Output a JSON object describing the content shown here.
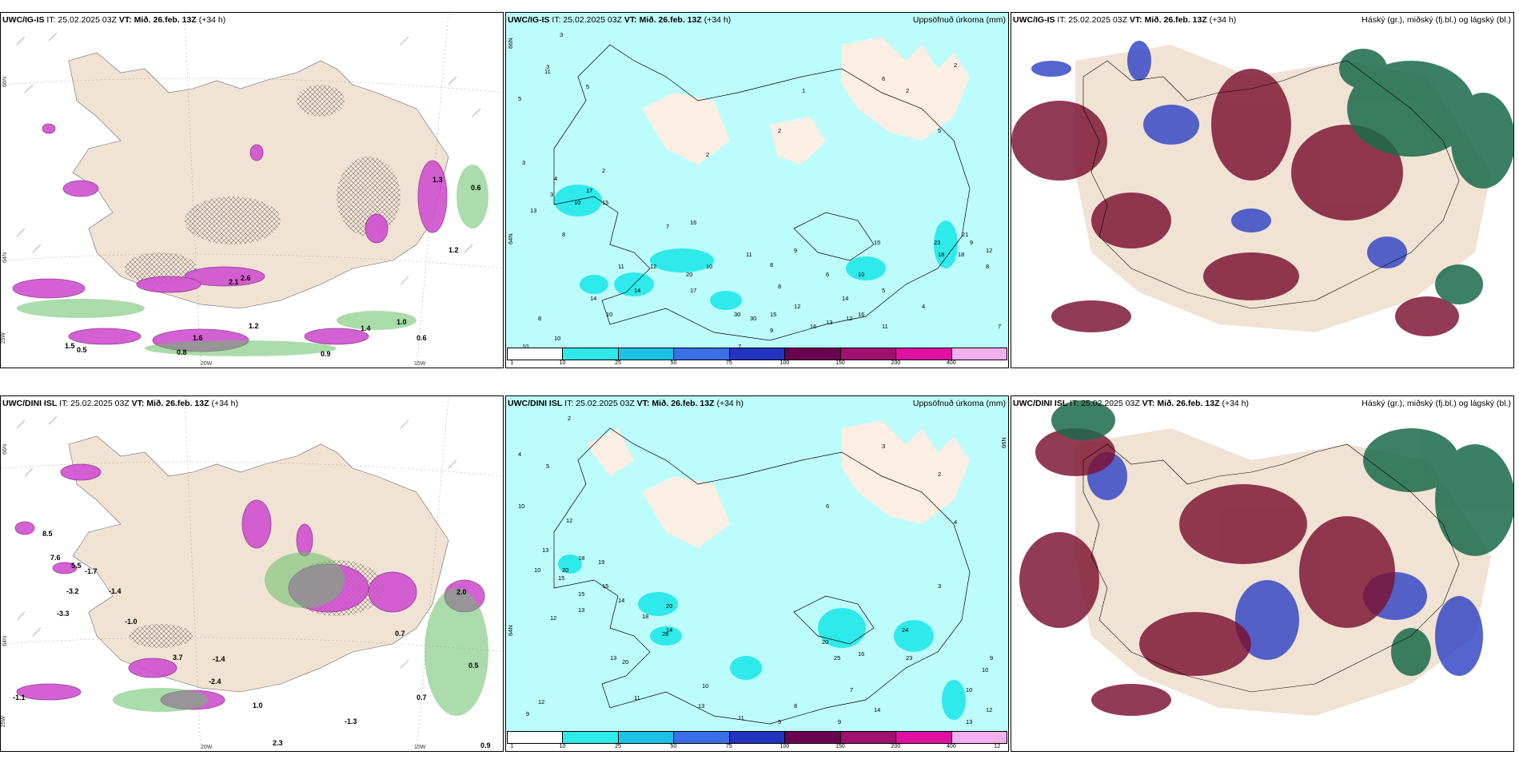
{
  "panels": [
    {
      "model": "UWC/IG-IS",
      "it": "IT: 25.02.2025 03Z",
      "vt": "VT: Mið. 26.feb. 13Z",
      "lead": "(+34 h)",
      "right": ""
    },
    {
      "model": "UWC/IG-IS",
      "it": "IT: 25.02.2025 03Z",
      "vt": "VT: Mið. 26.feb. 13Z",
      "lead": "(+34 h)",
      "right": "Uppsöfnuð úrkoma (mm)"
    },
    {
      "model": "UWC/IG-IS",
      "it": "IT: 25.02.2025 03Z",
      "vt": "VT: Mið. 26.feb. 13Z",
      "lead": "(+34 h)",
      "right": "Háský (gr.), miðský (fj.bl.) og lágský (bl.)"
    },
    {
      "model": "UWC/DINI ISL",
      "it": "IT: 25.02.2025 03Z",
      "vt": "VT: Mið. 26.feb. 13Z",
      "lead": "(+34 h)",
      "right": ""
    },
    {
      "model": "UWC/DINI ISL",
      "it": "IT: 25.02.2025 03Z",
      "vt": "VT: Mið. 26.feb. 13Z",
      "lead": "(+34 h)",
      "right": "Uppsöfnuð úrkoma (mm)"
    },
    {
      "model": "UWC/DINI ISL",
      "it": "IT: 25.02.2025 03Z",
      "vt": "VT: Mið. 26.feb. 13Z",
      "lead": "(+34 h)",
      "right": "Háský (gr.), miðský (fj.bl.) og lágský (bl.)"
    }
  ],
  "legend": {
    "ticks": [
      "1",
      "10",
      "25",
      "50",
      "75",
      "100",
      "150",
      "200",
      "400"
    ],
    "colors": [
      "#bdfcfc",
      "#2eeaea",
      "#1cc2e6",
      "#3a6fe8",
      "#2233c0",
      "#6a0050",
      "#a0106e",
      "#e010a0",
      "#f4b0ee"
    ]
  },
  "axis_labels": {
    "lat66": "66N",
    "lat64": "64N",
    "lon20": "20W",
    "lon15": "15W",
    "lon25": "25W"
  },
  "precip_values": {
    "top": [
      "3",
      "11",
      "5",
      "3",
      "5",
      "2",
      "6",
      "1",
      "2",
      "2",
      "2",
      "3",
      "4",
      "3",
      "10",
      "13",
      "8",
      "17",
      "16",
      "30",
      "23",
      "18",
      "15",
      "11",
      "14",
      "12",
      "15",
      "20",
      "17",
      "14",
      "10",
      "30",
      "9",
      "12",
      "16",
      "11",
      "8",
      "10",
      "10",
      "7",
      "8",
      "6",
      "5",
      "15",
      "10",
      "21",
      "18",
      "9",
      "12",
      "3",
      "5",
      "2",
      "11",
      "10",
      "7",
      "8",
      "12",
      "16",
      "13",
      "14",
      "9",
      "8",
      "7",
      "4",
      "3"
    ],
    "bottom": [
      "2",
      "4",
      "10",
      "5",
      "13",
      "10",
      "15",
      "12",
      "20",
      "19",
      "14",
      "13",
      "18",
      "20",
      "15",
      "14",
      "13",
      "20",
      "28",
      "10",
      "11",
      "12",
      "9",
      "20",
      "25",
      "16",
      "24",
      "23",
      "12",
      "10",
      "9",
      "14",
      "13",
      "11",
      "5",
      "8",
      "7",
      "3",
      "4",
      "2",
      "3",
      "6",
      "18",
      "15",
      "12",
      "9",
      "10",
      "12",
      "13"
    ]
  },
  "contour_values": {
    "top": [
      "0.6",
      "1.0",
      "0.6",
      "0.8",
      "1.5",
      "1.2",
      "2.1",
      "2.6",
      "1.3",
      "1.2",
      "1.4",
      "1.6",
      "0.5",
      "0.9"
    ],
    "bottom": [
      "8.5",
      "7.6",
      "5.5",
      "-1.7",
      "-3.2",
      "-3.3",
      "-1.4",
      "-1.0",
      "1.0",
      "-2.4",
      "-1.4",
      "0.7",
      "-1.3",
      "0.5",
      "2.0",
      "0.9",
      "0.7",
      "-1.1",
      "3.7",
      "2.3"
    ]
  }
}
